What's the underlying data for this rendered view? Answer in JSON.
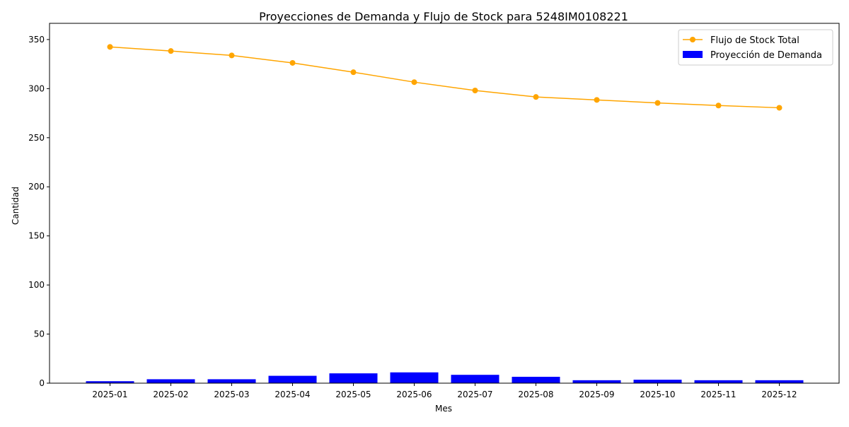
{
  "chart_data": {
    "type": "bar+line",
    "title": "Proyecciones de Demanda y Flujo de Stock para 5248IM0108221",
    "xlabel": "Mes",
    "ylabel": "Cantidad",
    "categories": [
      "2025-01",
      "2025-02",
      "2025-03",
      "2025-04",
      "2025-05",
      "2025-06",
      "2025-07",
      "2025-08",
      "2025-09",
      "2025-10",
      "2025-11",
      "2025-12"
    ],
    "series": [
      {
        "name": "Proyección de Demanda",
        "kind": "bar",
        "color": "#0000ff",
        "values": [
          2,
          4,
          4,
          7.5,
          10,
          11,
          8.5,
          6.5,
          3,
          3.5,
          3,
          3
        ]
      },
      {
        "name": "Flujo de Stock Total",
        "kind": "line",
        "color": "#ffa500",
        "values": [
          342.5,
          338.3,
          333.8,
          326.2,
          316.7,
          306.6,
          298.1,
          291.5,
          288.5,
          285.4,
          282.8,
          280.5
        ]
      }
    ],
    "ylim": [
      0,
      350
    ],
    "yticks": [
      0,
      50,
      100,
      150,
      200,
      250,
      300,
      350
    ],
    "legend_position": "top-right",
    "grid": false
  }
}
